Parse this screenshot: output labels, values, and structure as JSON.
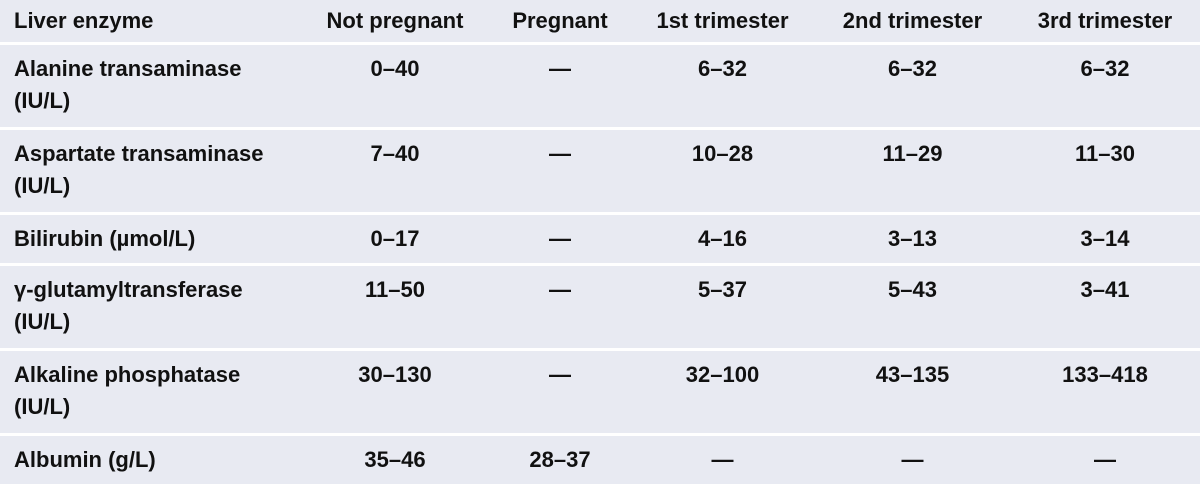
{
  "table": {
    "header": [
      "Liver enzyme",
      "Not pregnant",
      "Pregnant",
      "1st trimester",
      "2nd trimester",
      "3rd trimester"
    ],
    "rows": [
      [
        "Alanine transaminase (IU/L)",
        "0–40",
        "—",
        "6–32",
        "6–32",
        "6–32"
      ],
      [
        "Aspartate transaminase (IU/L)",
        "7–40",
        "—",
        "10–28",
        "11–29",
        "11–30"
      ],
      [
        "Bilirubin (µmol/L)",
        "0–17",
        "—",
        "4–16",
        "3–13",
        "3–14"
      ],
      [
        "γ-glutamyltransferase (IU/L)",
        "11–50",
        "—",
        "5–37",
        "5–43",
        "3–41"
      ],
      [
        "Alkaline phosphatase (IU/L)",
        "30–130",
        "—",
        "32–100",
        "43–135",
        "133–418"
      ],
      [
        "Albumin (g/L)",
        "35–46",
        "28–37",
        "—",
        "—",
        "—"
      ]
    ]
  }
}
